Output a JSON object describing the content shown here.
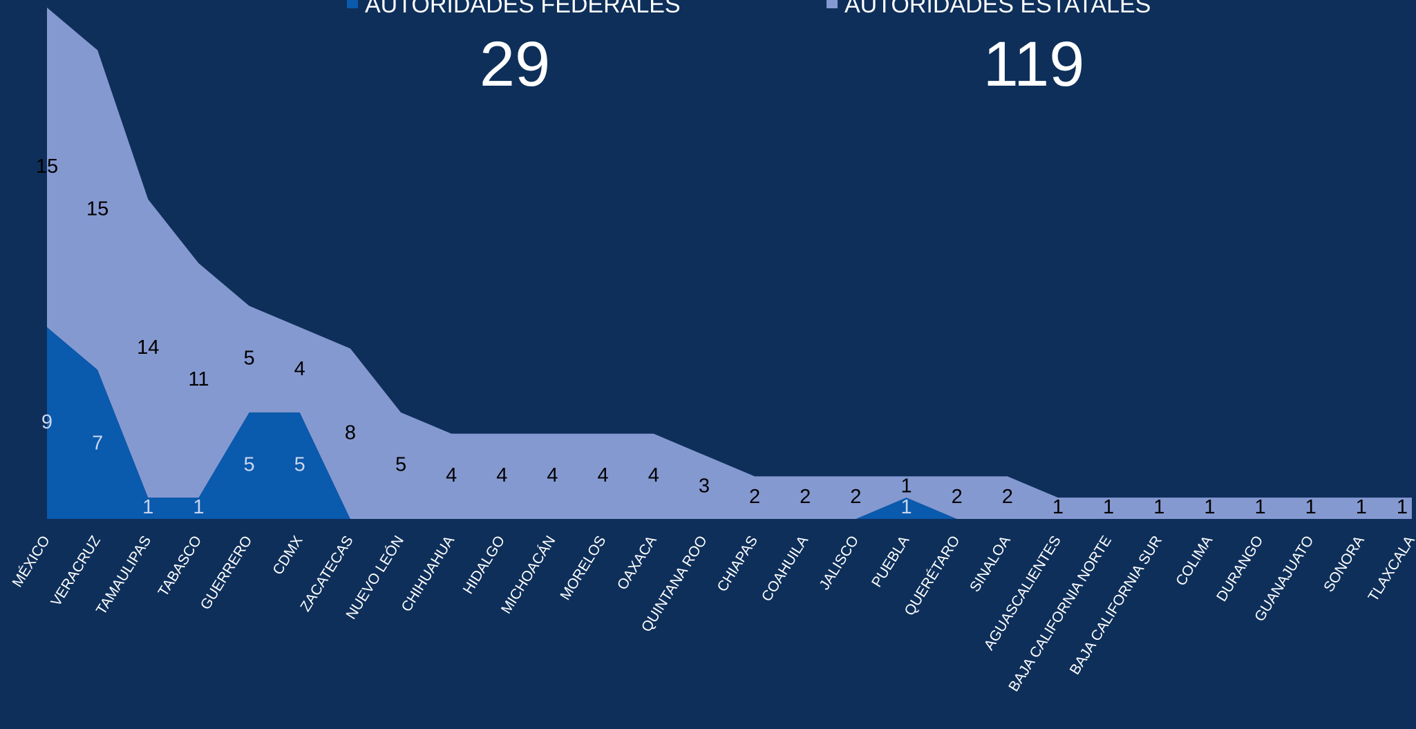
{
  "chart_data": {
    "type": "stacked_area",
    "categories": [
      "MÉXICO",
      "VERACRUZ",
      "TAMAULIPAS",
      "TABASCO",
      "GUERRERO",
      "CDMX",
      "ZACATECAS",
      "NUEVO LEÓN",
      "CHIHUAHUA",
      "HIDALGO",
      "MICHOACÁN",
      "MORELOS",
      "OAXACA",
      "QUINTANA ROO",
      "CHIAPAS",
      "COAHUILA",
      "JALISCO",
      "PUEBLA",
      "QUERÉTARO",
      "SINALOA",
      "AGUASCALIENTES",
      "BAJA CALIFORNIA NORTE",
      "BAJA CALIFORNIA SUR",
      "COLIMA",
      "DURANGO",
      "GUANAJUATO",
      "SONORA",
      "TLAXCALA"
    ],
    "series": [
      {
        "name": "AUTORIDADES FEDERALES",
        "total": 29,
        "color": "#0a5aad",
        "label_color": "#c9d5ef",
        "values": [
          9,
          7,
          1,
          1,
          5,
          5,
          0,
          0,
          0,
          0,
          0,
          0,
          0,
          0,
          0,
          0,
          0,
          1,
          0,
          0,
          0,
          0,
          0,
          0,
          0,
          0,
          0,
          0
        ]
      },
      {
        "name": "AUTORIDADES ESTATALES",
        "total": 119,
        "color": "#8599d1",
        "label_color": "#000000",
        "values": [
          15,
          15,
          14,
          11,
          5,
          4,
          8,
          5,
          4,
          4,
          4,
          4,
          4,
          3,
          2,
          2,
          2,
          1,
          2,
          2,
          1,
          1,
          1,
          1,
          1,
          1,
          1,
          1
        ]
      }
    ],
    "ylim": [
      0,
      24
    ]
  }
}
